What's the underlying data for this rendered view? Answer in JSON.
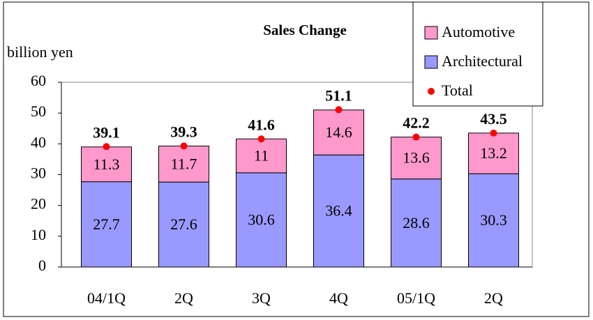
{
  "chart_data": {
    "type": "stacked_bar",
    "title": "Sales Change",
    "y_label": "billion yen",
    "categories": [
      "04/1Q",
      "2Q",
      "3Q",
      "4Q",
      "05/1Q",
      "2Q"
    ],
    "series": [
      {
        "name": "Architectural",
        "color": "#9999ff",
        "values": [
          27.7,
          27.6,
          30.6,
          36.4,
          28.6,
          30.3
        ]
      },
      {
        "name": "Automotive",
        "color": "#ff99cc",
        "values": [
          11.3,
          11.7,
          11.0,
          14.6,
          13.6,
          13.2
        ]
      },
      {
        "name": "Total",
        "color": "#ff0000",
        "marker": "dot",
        "values": [
          39.1,
          39.3,
          41.6,
          51.1,
          42.2,
          43.5
        ]
      }
    ],
    "ylim": [
      0,
      60
    ],
    "yticks": [
      0,
      10,
      20,
      30,
      40,
      50,
      60
    ],
    "legend": "top-right"
  }
}
